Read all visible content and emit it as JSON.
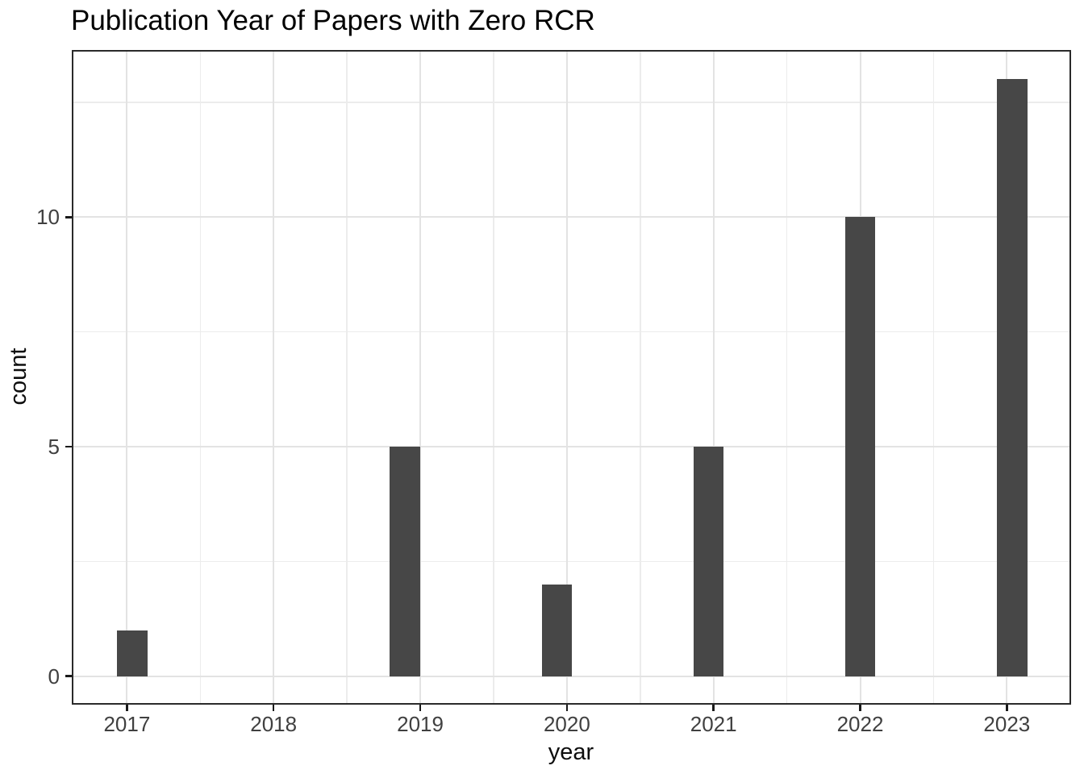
{
  "chart_data": {
    "type": "bar",
    "title": "Publication Year of Papers with Zero RCR",
    "xlabel": "year",
    "ylabel": "count",
    "categories": [
      2017,
      2018,
      2019,
      2020,
      2021,
      2022,
      2023
    ],
    "values": [
      1,
      0,
      5,
      2,
      5,
      10,
      13
    ],
    "bars": [
      {
        "year": 2017,
        "count": 1,
        "bin_center": 2017.035
      },
      {
        "year": 2019,
        "count": 5,
        "bin_center": 2018.897
      },
      {
        "year": 2020,
        "count": 2,
        "bin_center": 2019.932
      },
      {
        "year": 2021,
        "count": 5,
        "bin_center": 2020.966
      },
      {
        "year": 2022,
        "count": 10,
        "bin_center": 2021.999
      },
      {
        "year": 2023,
        "count": 13,
        "bin_center": 2023.035
      }
    ],
    "bar_width_years": 0.207,
    "x_ticks": [
      2017,
      2018,
      2019,
      2020,
      2021,
      2022,
      2023
    ],
    "y_ticks": [
      0,
      5,
      10
    ],
    "x_minor_gridlines": [
      2017.5,
      2018.5,
      2019.5,
      2020.5,
      2021.5,
      2022.5
    ],
    "y_minor_gridlines": [
      2.5,
      7.5,
      12.5
    ],
    "xlim": [
      2016.624,
      2023.438
    ],
    "ylim": [
      -0.62,
      13.64
    ],
    "grid": true,
    "legend": false
  },
  "style": {
    "bar_fill": "#474747",
    "grid_major_color": "#e3e3e3",
    "grid_minor_color": "#ececec",
    "panel_border_color": "#2a2a2a",
    "tick_mark_color": "#1a1a1a",
    "tick_label_color": "#404040",
    "axis_title_color": "#0d0d0d",
    "title_color": "#000000",
    "background": "#ffffff"
  }
}
